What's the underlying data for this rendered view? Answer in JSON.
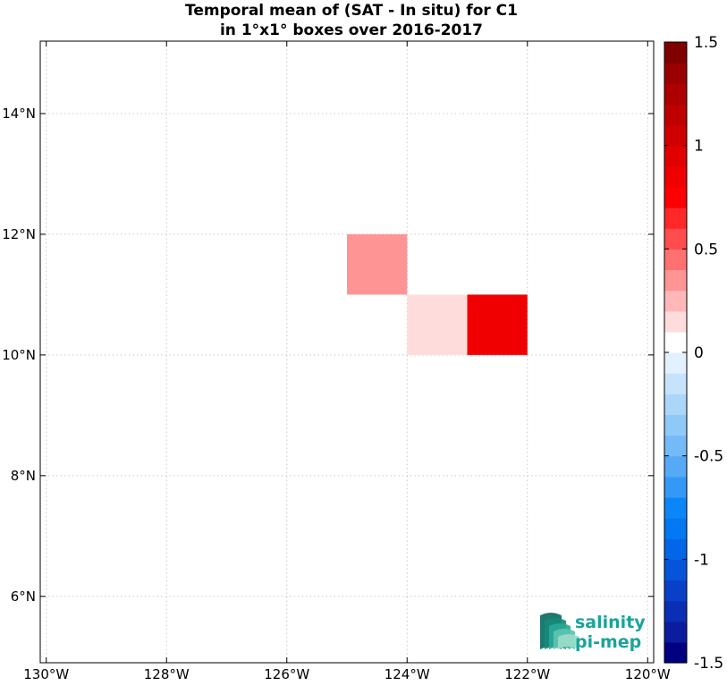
{
  "chart_data": {
    "type": "heatmap",
    "title": [
      "Temporal mean of (SAT - In situ) for C1",
      "in 1°x1° boxes over 2016-2017"
    ],
    "xlim": [
      -130.1,
      -119.9
    ],
    "ylim": [
      4.9,
      15.2
    ],
    "x_ticks": [
      -130,
      -128,
      -126,
      -124,
      -122,
      -120
    ],
    "x_tick_labels": [
      "130°W",
      "128°W",
      "126°W",
      "124°W",
      "122°W",
      "120°W"
    ],
    "y_ticks": [
      6,
      8,
      10,
      12,
      14
    ],
    "y_tick_labels": [
      "6°N",
      "8°N",
      "10°N",
      "12°N",
      "14°N"
    ],
    "grid": true,
    "cell_size_deg": 1,
    "cells": [
      {
        "lon_min": -125,
        "lon_max": -124,
        "lat_min": 11,
        "lat_max": 12,
        "value": 0.3
      },
      {
        "lon_min": -124,
        "lon_max": -123,
        "lat_min": 10,
        "lat_max": 11,
        "value": 0.15
      },
      {
        "lon_min": -123,
        "lon_max": -122,
        "lat_min": 10,
        "lat_max": 11,
        "value": 0.9
      }
    ],
    "colorbar": {
      "range": [
        -1.5,
        1.5
      ],
      "n_levels": 30,
      "ticks": [
        1.5,
        1,
        0.5,
        0,
        -0.5,
        -1,
        -1.5
      ],
      "tick_labels": [
        "1.5",
        "1",
        "0.5",
        "0",
        "-0.5",
        "-1",
        "-1.5"
      ],
      "colors": [
        "#000080",
        "#0b1d9e",
        "#0a2eb4",
        "#0840c8",
        "#0554da",
        "#0366e8",
        "#0278f2",
        "#0b86f6",
        "#3399f6",
        "#55aaf6",
        "#73baf7",
        "#8fc9f8",
        "#aad6f9",
        "#c6e3fb",
        "#e3f0fd",
        "#ffffff",
        "#ffdcdc",
        "#ffb8b8",
        "#ff9494",
        "#ff7070",
        "#ff4c4c",
        "#ff2828",
        "#ff0000",
        "#f00000",
        "#e00000",
        "#d00000",
        "#bf0000",
        "#ad0000",
        "#9a0000",
        "#800000"
      ]
    },
    "logo": {
      "line1": "salinity",
      "line2": "pi-mep",
      "text_color": "#1aa39a"
    }
  }
}
